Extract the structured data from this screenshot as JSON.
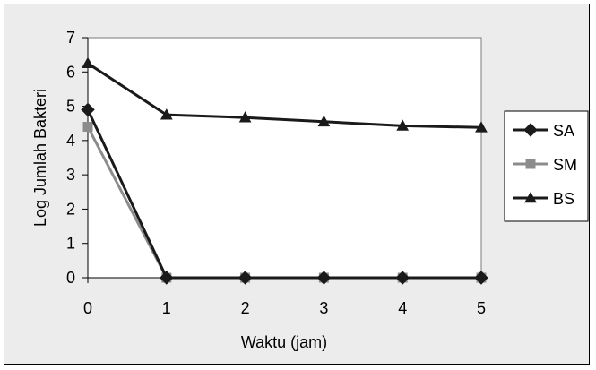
{
  "chart_data": {
    "type": "line",
    "title": "",
    "xlabel": "Waktu (jam)",
    "ylabel": "Log Jumlah Bakteri",
    "x": [
      0,
      1,
      2,
      3,
      4,
      5
    ],
    "xlim": [
      0,
      5
    ],
    "ylim": [
      0,
      7
    ],
    "yticks": [
      0,
      1,
      2,
      3,
      4,
      5,
      6,
      7
    ],
    "xticks": [
      0,
      1,
      2,
      3,
      4,
      5
    ],
    "grid": false,
    "legend_position": "right",
    "series": [
      {
        "name": "SA",
        "values": [
          4.9,
          0,
          0,
          0,
          0,
          0
        ],
        "marker": "diamond",
        "color": "#1a1a1a"
      },
      {
        "name": "SM",
        "values": [
          4.4,
          0,
          0,
          0,
          0,
          0
        ],
        "marker": "square",
        "color": "#8c8c8c"
      },
      {
        "name": "BS",
        "values": [
          6.25,
          4.75,
          4.67,
          4.55,
          4.43,
          4.38
        ],
        "marker": "triangle",
        "color": "#1a1a1a"
      }
    ]
  }
}
